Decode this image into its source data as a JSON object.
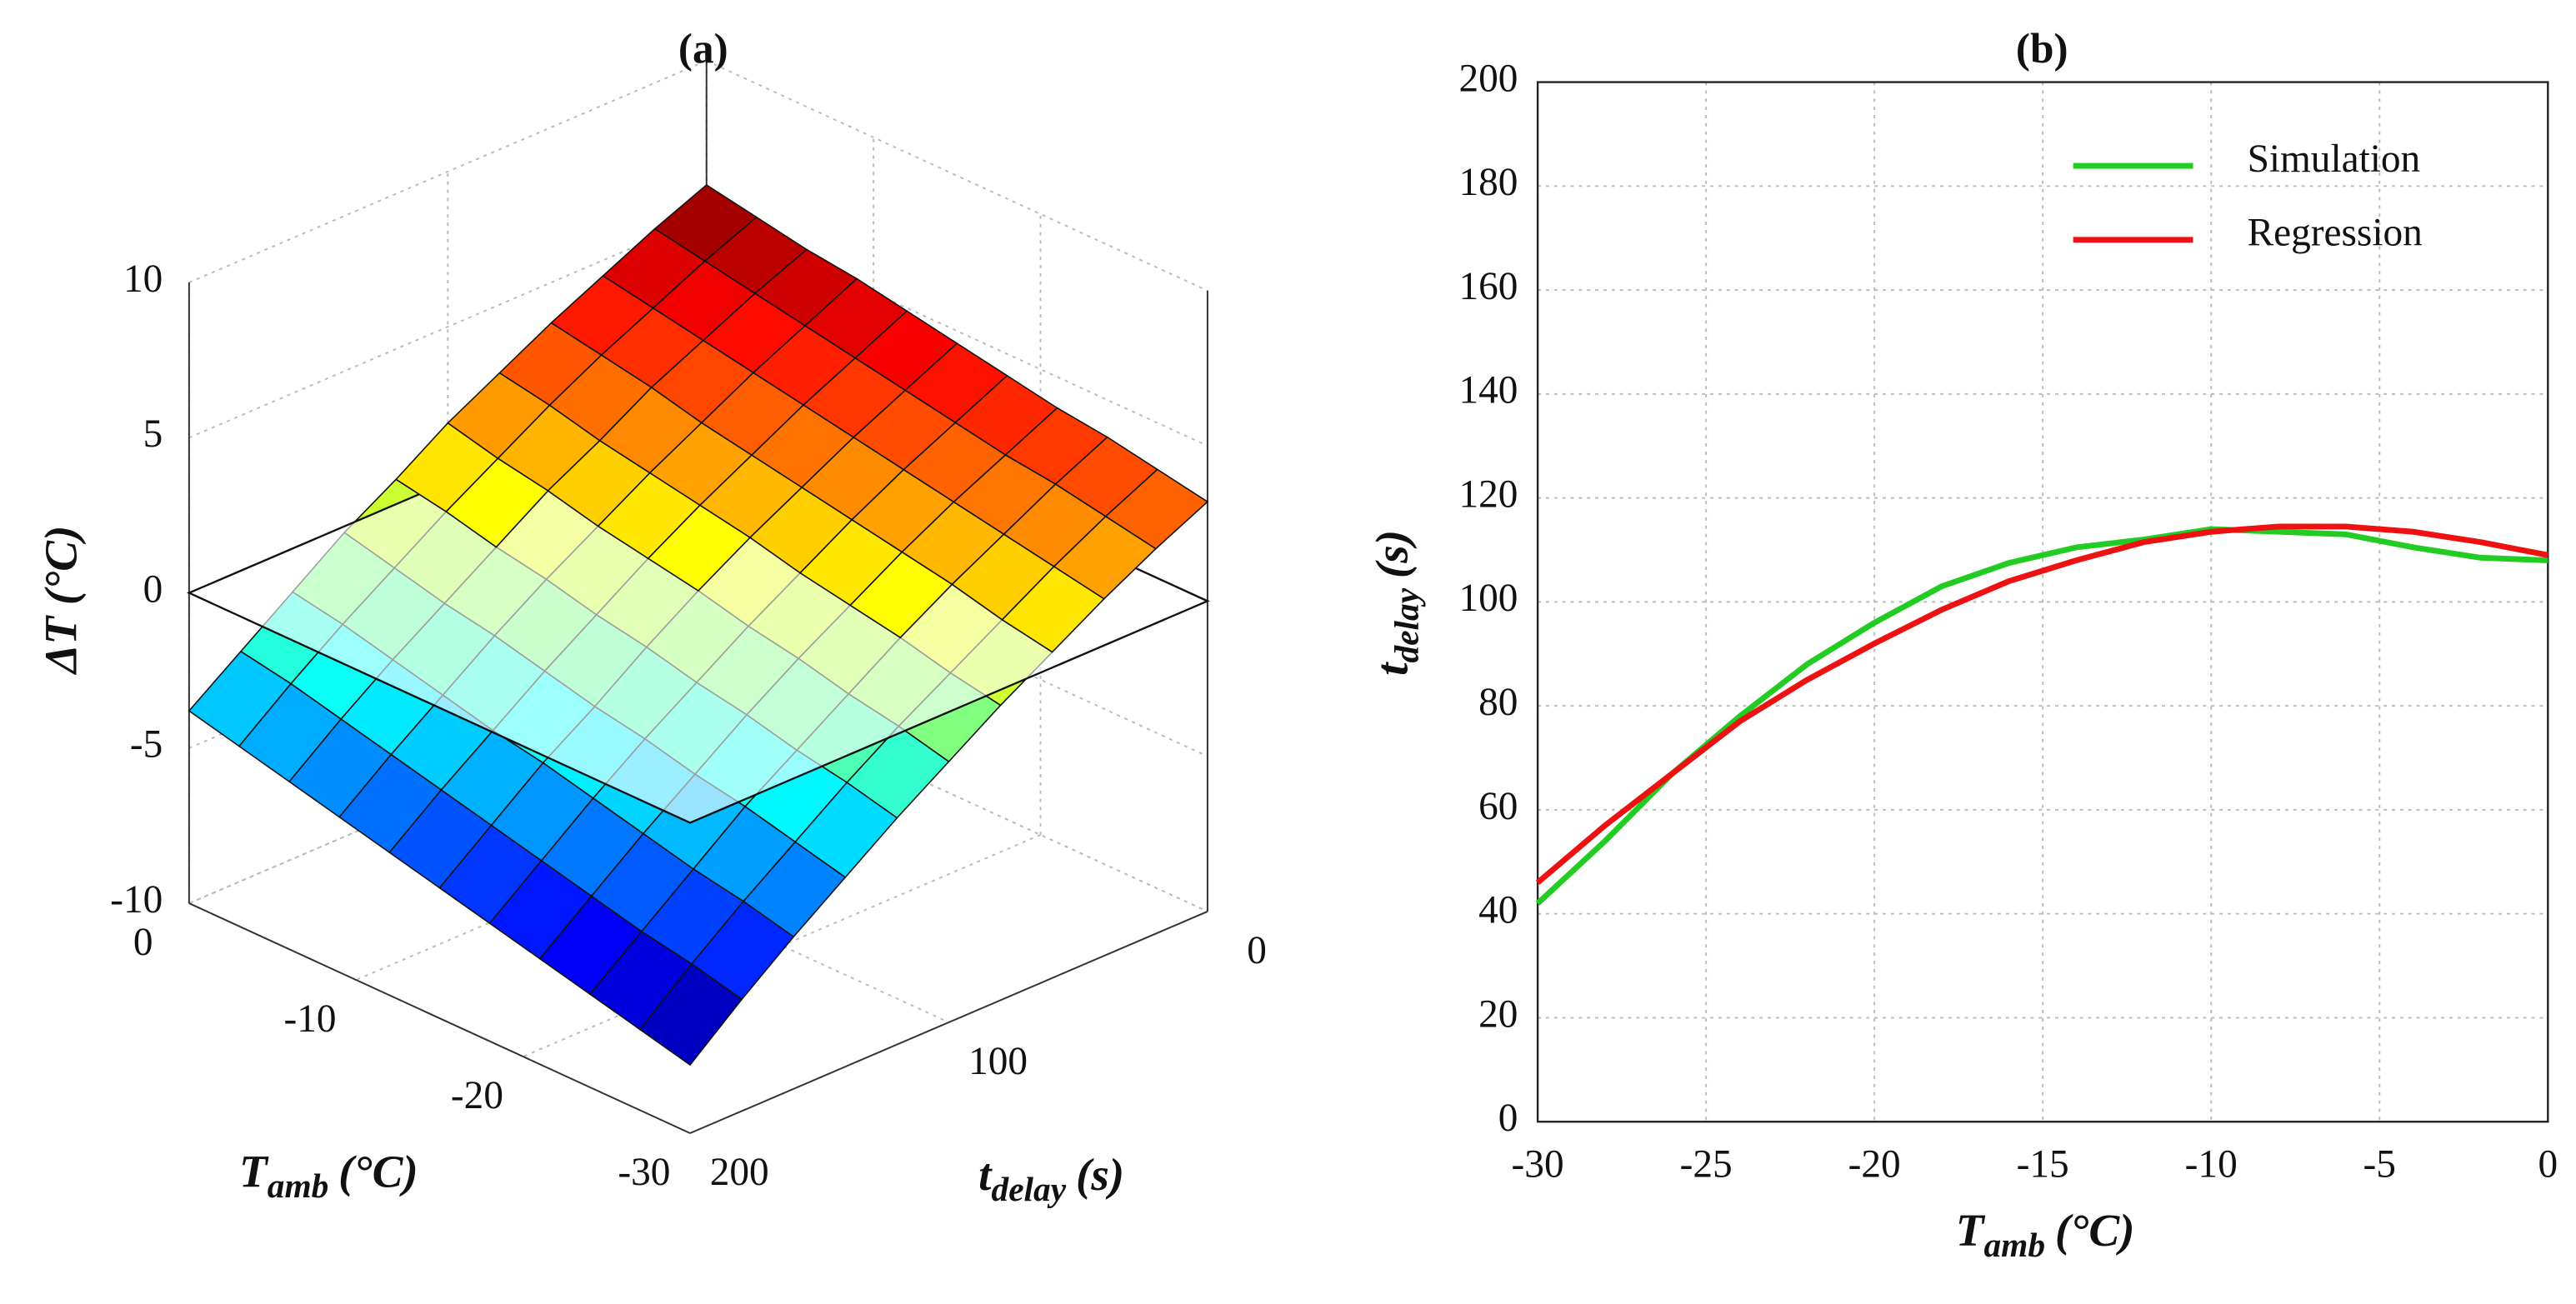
{
  "chart_data": [
    {
      "type": "surface",
      "title": "(a)",
      "zlabel": "ΔT (°C)",
      "xlabel": {
        "text": "T",
        "sub": "amb",
        "unit": "(°C)"
      },
      "ylabel": {
        "text": "t",
        "sub": "delay",
        "unit": "(s)"
      },
      "x": [
        -30,
        -27,
        -24,
        -21,
        -18,
        -15,
        -12,
        -9,
        -6,
        -3,
        0
      ],
      "y": [
        0,
        20,
        40,
        60,
        80,
        100,
        120,
        140,
        160,
        180,
        200
      ],
      "z": [
        [
          3.2,
          3.5,
          3.8,
          4.0,
          4.3,
          4.6,
          4.9,
          5.2,
          5.4,
          5.7,
          6.0
        ],
        [
          2.4,
          2.7,
          3.0,
          3.2,
          3.5,
          3.8,
          4.1,
          4.4,
          4.7,
          5.0,
          5.3
        ],
        [
          1.5,
          1.8,
          2.1,
          2.4,
          2.7,
          3.0,
          3.3,
          3.6,
          3.9,
          4.2,
          4.5
        ],
        [
          0.5,
          0.8,
          1.2,
          1.5,
          1.8,
          2.1,
          2.4,
          2.7,
          3.1,
          3.4,
          3.7
        ],
        [
          -0.5,
          -0.2,
          0.2,
          0.5,
          0.8,
          1.2,
          1.5,
          1.8,
          2.1,
          2.5,
          2.8
        ],
        [
          -1.6,
          -1.2,
          -0.9,
          -0.5,
          -0.2,
          0.2,
          0.5,
          0.8,
          1.2,
          1.5,
          1.9
        ],
        [
          -2.7,
          -2.3,
          -2.0,
          -1.6,
          -1.3,
          -0.9,
          -0.6,
          -0.2,
          0.1,
          0.5,
          0.8
        ],
        [
          -3.9,
          -3.5,
          -3.1,
          -2.8,
          -2.4,
          -2.1,
          -1.7,
          -1.3,
          -1.0,
          -0.6,
          -0.2
        ],
        [
          -5.1,
          -4.7,
          -4.4,
          -4.0,
          -3.6,
          -3.2,
          -2.9,
          -2.5,
          -2.1,
          -1.7,
          -1.4
        ],
        [
          -6.4,
          -6.0,
          -5.7,
          -5.3,
          -4.9,
          -4.5,
          -4.1,
          -3.7,
          -3.3,
          -2.9,
          -2.6
        ],
        [
          -7.8,
          -7.4,
          -7.0,
          -6.6,
          -6.2,
          -5.8,
          -5.4,
          -5.0,
          -4.6,
          -4.2,
          -3.8
        ]
      ],
      "xlim": [
        -30,
        0
      ],
      "xticks": [
        0,
        -10,
        -20,
        -30
      ],
      "ylim": [
        0,
        200
      ],
      "yticks": [
        0,
        100,
        200
      ],
      "zlim": [
        -10,
        10
      ],
      "zticks": [
        -10,
        -5,
        0,
        5,
        10
      ],
      "reference_plane": 0,
      "colormap": "jet",
      "grid": true
    },
    {
      "type": "line",
      "title": "(b)",
      "xlabel": {
        "text": "T",
        "sub": "amb",
        "unit": "(°C)"
      },
      "ylabel": {
        "text": "t",
        "sub": "delay",
        "unit": "(s)"
      },
      "x": [
        -30,
        -28,
        -26,
        -24,
        -22,
        -20,
        -18,
        -16,
        -14,
        -12,
        -10,
        -8,
        -6,
        -4,
        -2,
        0
      ],
      "series": [
        {
          "name": "Simulation",
          "color": "#22cc22",
          "values": [
            42,
            54,
            67,
            78,
            88,
            96,
            103,
            107.5,
            110.5,
            112,
            114,
            113.5,
            113,
            110.5,
            108.5,
            108
          ]
        },
        {
          "name": "Regression",
          "color": "#ee1111",
          "values": [
            46,
            57,
            67,
            77,
            85,
            92,
            98.5,
            104,
            108,
            111.5,
            113.5,
            114.5,
            114.5,
            113.5,
            111.5,
            109
          ]
        }
      ],
      "xlim": [
        -30,
        0
      ],
      "xticks": [
        -30,
        -25,
        -20,
        -15,
        -10,
        -5,
        0
      ],
      "ylim": [
        0,
        200
      ],
      "yticks": [
        0,
        20,
        40,
        60,
        80,
        100,
        120,
        140,
        160,
        180,
        200
      ],
      "grid": true,
      "legend": "upper right"
    }
  ]
}
